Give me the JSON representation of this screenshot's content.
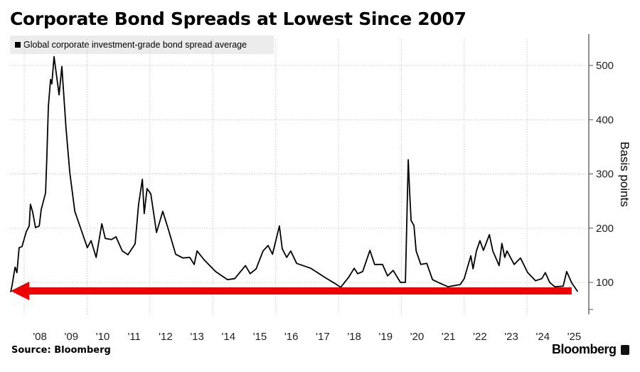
{
  "title": "Corporate Bond Spreads at Lowest Since 2007",
  "source": "Source: Bloomberg",
  "brand": "Bloomberg",
  "colors": {
    "line": "#000000",
    "arrow": "#ee0000",
    "grid": "#cccccc",
    "legend_bg": "#ececec"
  },
  "chart_data": {
    "type": "line",
    "title": "Corporate Bond Spreads at Lowest Since 2007",
    "xlabel": "",
    "ylabel": "Basis points",
    "ylim": [
      50,
      550
    ],
    "xlim": [
      2007.57,
      2025.65
    ],
    "y_ticks": [
      100,
      200,
      300,
      400,
      500
    ],
    "x_tick_labels": [
      "'08",
      "'09",
      "'10",
      "'11",
      "'12",
      "'13",
      "'14",
      "'15",
      "'16",
      "'17",
      "'18",
      "'19",
      "'20",
      "'21",
      "'22",
      "'23",
      "'24",
      "'25"
    ],
    "x_tick_years": [
      2008,
      2009,
      2010,
      2011,
      2012,
      2013,
      2014,
      2015,
      2016,
      2017,
      2018,
      2019,
      2020,
      2021,
      2022,
      2023,
      2024,
      2025
    ],
    "grid": true,
    "legend": {
      "position": "top-left",
      "entries": [
        "Global corporate investment-grade bond spread average"
      ]
    },
    "annotation": {
      "type": "arrow",
      "color": "#ee0000",
      "from_year": 2025.42,
      "to_year": 2007.57,
      "value": 84
    },
    "series": [
      {
        "name": "Global corporate investment-grade bond spread average",
        "points": [
          [
            2007.57,
            82
          ],
          [
            2007.62,
            96
          ],
          [
            2007.71,
            128
          ],
          [
            2007.77,
            118
          ],
          [
            2007.84,
            164
          ],
          [
            2007.93,
            166
          ],
          [
            2008.07,
            194
          ],
          [
            2008.16,
            204
          ],
          [
            2008.2,
            244
          ],
          [
            2008.27,
            230
          ],
          [
            2008.36,
            201
          ],
          [
            2008.48,
            204
          ],
          [
            2008.54,
            234
          ],
          [
            2008.68,
            265
          ],
          [
            2008.72,
            328
          ],
          [
            2008.77,
            424
          ],
          [
            2008.84,
            474
          ],
          [
            2008.88,
            466
          ],
          [
            2008.95,
            516
          ],
          [
            2009.11,
            446
          ],
          [
            2009.2,
            498
          ],
          [
            2009.33,
            385
          ],
          [
            2009.45,
            303
          ],
          [
            2009.61,
            231
          ],
          [
            2009.79,
            201
          ],
          [
            2010.01,
            164
          ],
          [
            2010.13,
            177
          ],
          [
            2010.29,
            146
          ],
          [
            2010.47,
            208
          ],
          [
            2010.58,
            181
          ],
          [
            2010.78,
            179
          ],
          [
            2010.92,
            184
          ],
          [
            2011.12,
            158
          ],
          [
            2011.3,
            151
          ],
          [
            2011.53,
            171
          ],
          [
            2011.64,
            244
          ],
          [
            2011.76,
            290
          ],
          [
            2011.82,
            227
          ],
          [
            2011.91,
            273
          ],
          [
            2012.03,
            263
          ],
          [
            2012.21,
            192
          ],
          [
            2012.41,
            231
          ],
          [
            2012.59,
            197
          ],
          [
            2012.82,
            152
          ],
          [
            2013.05,
            145
          ],
          [
            2013.27,
            146
          ],
          [
            2013.41,
            133
          ],
          [
            2013.5,
            158
          ],
          [
            2013.72,
            142
          ],
          [
            2014.09,
            120
          ],
          [
            2014.47,
            105
          ],
          [
            2014.7,
            107
          ],
          [
            2015.04,
            131
          ],
          [
            2015.19,
            116
          ],
          [
            2015.38,
            125
          ],
          [
            2015.6,
            158
          ],
          [
            2015.76,
            168
          ],
          [
            2015.9,
            152
          ],
          [
            2016.12,
            204
          ],
          [
            2016.21,
            162
          ],
          [
            2016.35,
            146
          ],
          [
            2016.48,
            158
          ],
          [
            2016.67,
            135
          ],
          [
            2017.12,
            126
          ],
          [
            2017.57,
            109
          ],
          [
            2017.86,
            99
          ],
          [
            2018.07,
            91
          ],
          [
            2018.32,
            109
          ],
          [
            2018.5,
            126
          ],
          [
            2018.61,
            116
          ],
          [
            2018.77,
            120
          ],
          [
            2019.0,
            159
          ],
          [
            2019.15,
            133
          ],
          [
            2019.4,
            133
          ],
          [
            2019.56,
            112
          ],
          [
            2019.74,
            122
          ],
          [
            2019.97,
            100
          ],
          [
            2020.13,
            100
          ],
          [
            2020.22,
            326
          ],
          [
            2020.26,
            271
          ],
          [
            2020.31,
            214
          ],
          [
            2020.4,
            205
          ],
          [
            2020.47,
            158
          ],
          [
            2020.62,
            133
          ],
          [
            2020.81,
            135
          ],
          [
            2020.99,
            105
          ],
          [
            2021.21,
            99
          ],
          [
            2021.48,
            92
          ],
          [
            2021.87,
            96
          ],
          [
            2022.0,
            107
          ],
          [
            2022.21,
            149
          ],
          [
            2022.28,
            125
          ],
          [
            2022.39,
            158
          ],
          [
            2022.5,
            177
          ],
          [
            2022.61,
            159
          ],
          [
            2022.8,
            188
          ],
          [
            2022.91,
            158
          ],
          [
            2023.11,
            131
          ],
          [
            2023.2,
            172
          ],
          [
            2023.29,
            146
          ],
          [
            2023.36,
            158
          ],
          [
            2023.59,
            133
          ],
          [
            2023.79,
            145
          ],
          [
            2024.02,
            118
          ],
          [
            2024.27,
            103
          ],
          [
            2024.47,
            107
          ],
          [
            2024.58,
            118
          ],
          [
            2024.72,
            100
          ],
          [
            2024.88,
            92
          ],
          [
            2025.15,
            93
          ],
          [
            2025.26,
            120
          ],
          [
            2025.42,
            99
          ],
          [
            2025.61,
            83
          ]
        ]
      }
    ]
  }
}
